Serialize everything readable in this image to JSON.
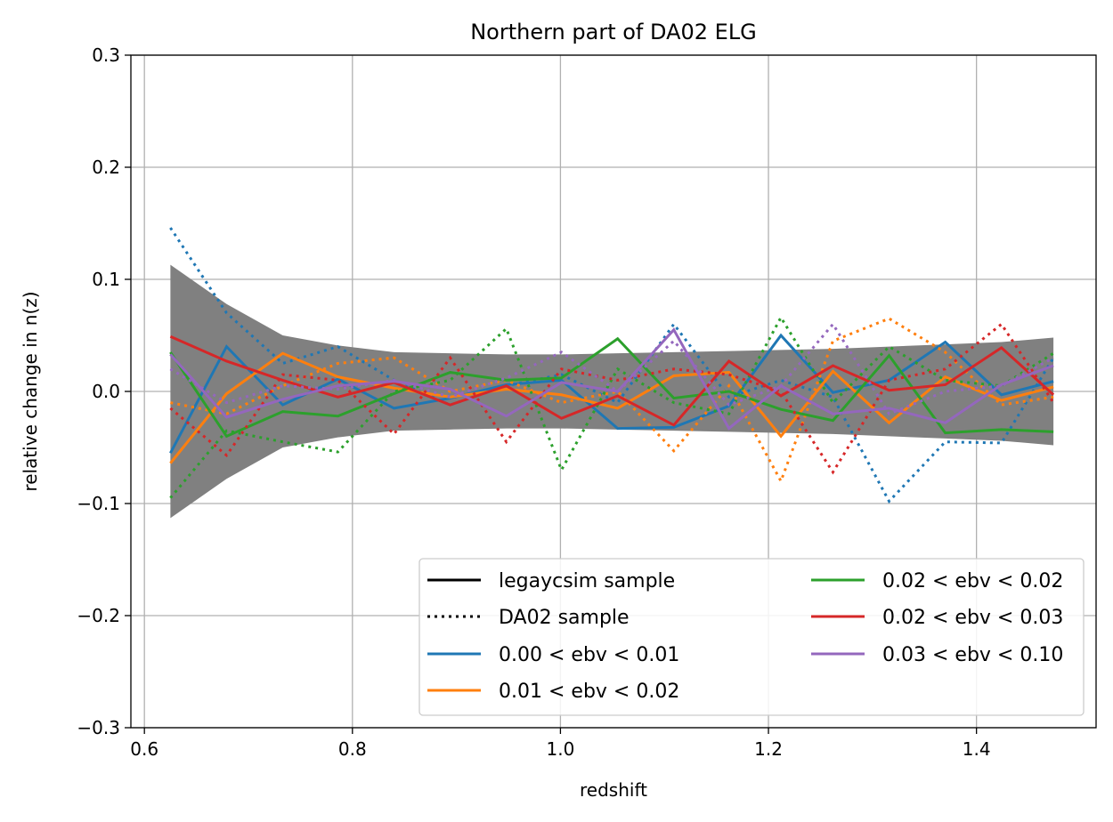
{
  "chart_data": {
    "type": "line",
    "title": "Northern part of DA02 ELG",
    "xlabel": "redshift",
    "ylabel": "relative change in n(z)",
    "xlim": [
      0.587,
      1.515
    ],
    "ylim": [
      -0.3,
      0.3
    ],
    "xticks": [
      0.6,
      0.8,
      1.0,
      1.2,
      1.4
    ],
    "xtick_labels": [
      "0.6",
      "0.8",
      "1.0",
      "1.2",
      "1.4"
    ],
    "yticks": [
      -0.3,
      -0.2,
      -0.1,
      0.0,
      0.1,
      0.2,
      0.3
    ],
    "ytick_labels": [
      "−0.3",
      "−0.2",
      "−0.1",
      "0.0",
      "0.1",
      "0.2",
      "0.3"
    ],
    "grid": true,
    "legend_position": "lower-right",
    "legend_columns": 2,
    "x": [
      0.625,
      0.679,
      0.733,
      0.786,
      0.84,
      0.894,
      0.948,
      1.001,
      1.055,
      1.109,
      1.162,
      1.212,
      1.262,
      1.316,
      1.37,
      1.424,
      1.474
    ],
    "band": {
      "color": "#808080",
      "upper": [
        0.113,
        0.078,
        0.05,
        0.041,
        0.035,
        0.034,
        0.033,
        0.033,
        0.034,
        0.035,
        0.036,
        0.037,
        0.038,
        0.04,
        0.042,
        0.044,
        0.048
      ],
      "lower": [
        -0.113,
        -0.078,
        -0.05,
        -0.041,
        -0.035,
        -0.034,
        -0.033,
        -0.033,
        -0.034,
        -0.035,
        -0.036,
        -0.037,
        -0.038,
        -0.04,
        -0.042,
        -0.044,
        -0.048
      ]
    },
    "style_legend": [
      {
        "label": "legaycsim sample",
        "dash": "solid",
        "color": "#000000"
      },
      {
        "label": "DA02 sample",
        "dash": "dotted",
        "color": "#000000"
      }
    ],
    "series": [
      {
        "name": "0.00 < ebv < 0.01",
        "color": "#1f77b4",
        "solid": [
          -0.055,
          0.04,
          -0.012,
          0.011,
          -0.015,
          -0.006,
          0.006,
          0.01,
          -0.033,
          -0.032,
          -0.013,
          0.05,
          -0.001,
          0.01,
          0.044,
          -0.003,
          0.009
        ],
        "dotted": [
          0.146,
          0.07,
          0.025,
          0.04,
          0.01,
          -0.012,
          0.005,
          0.015,
          -0.01,
          0.06,
          -0.005,
          0.01,
          -0.005,
          -0.098,
          -0.045,
          -0.046,
          0.03
        ]
      },
      {
        "name": "0.01 < ebv < 0.02",
        "color": "#ff7f0e",
        "solid": [
          -0.064,
          -0.002,
          0.034,
          0.013,
          0.003,
          -0.005,
          0.002,
          -0.003,
          -0.015,
          0.014,
          0.017,
          -0.04,
          0.018,
          -0.028,
          0.013,
          -0.008,
          0.004
        ],
        "dotted": [
          -0.01,
          -0.02,
          0.005,
          0.025,
          0.03,
          0.0,
          0.01,
          -0.01,
          0.0,
          -0.053,
          0.005,
          -0.08,
          0.045,
          0.065,
          0.035,
          -0.012,
          -0.005
        ]
      },
      {
        "name": "0.02 < ebv < 0.02",
        "color": "#2ca02c",
        "solid": [
          0.035,
          -0.04,
          -0.018,
          -0.022,
          -0.002,
          0.017,
          0.01,
          0.012,
          0.047,
          -0.006,
          0.0,
          -0.016,
          -0.026,
          0.032,
          -0.037,
          -0.034,
          -0.036
        ],
        "dotted": [
          -0.095,
          -0.035,
          -0.045,
          -0.054,
          0.0,
          0.01,
          0.056,
          -0.07,
          0.02,
          -0.01,
          -0.02,
          0.066,
          -0.01,
          0.04,
          0.01,
          0.005,
          0.034
        ]
      },
      {
        "name": "0.02 < ebv < 0.03",
        "color": "#d62728",
        "solid": [
          0.049,
          0.027,
          0.01,
          -0.005,
          0.008,
          -0.012,
          0.005,
          -0.024,
          -0.004,
          -0.03,
          0.027,
          -0.004,
          0.023,
          0.001,
          0.006,
          0.039,
          -0.003
        ],
        "dotted": [
          -0.015,
          -0.057,
          0.015,
          0.01,
          -0.038,
          0.03,
          -0.045,
          0.02,
          0.01,
          0.02,
          0.015,
          0.0,
          -0.072,
          0.01,
          0.02,
          0.06,
          -0.01
        ]
      },
      {
        "name": "0.03 < ebv < 0.10",
        "color": "#9467bd",
        "solid": [
          0.033,
          -0.023,
          -0.007,
          0.005,
          0.009,
          0.002,
          -0.022,
          0.008,
          0.0,
          0.055,
          -0.033,
          0.005,
          -0.02,
          -0.015,
          -0.028,
          0.006,
          0.023
        ],
        "dotted": [
          0.02,
          -0.01,
          0.005,
          0.002,
          0.01,
          -0.005,
          0.012,
          0.035,
          0.0,
          0.045,
          -0.012,
          0.005,
          0.06,
          -0.02,
          0.0,
          0.005,
          0.03
        ]
      }
    ]
  }
}
